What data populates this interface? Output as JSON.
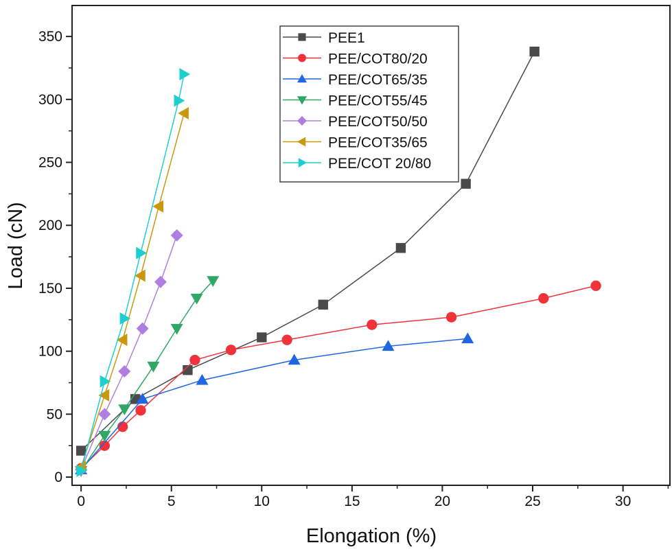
{
  "chart_data": {
    "type": "line",
    "title": "",
    "xlabel": "Elongation (%)",
    "ylabel": "Load (cN)",
    "xlim": [
      -0.5,
      32.6
    ],
    "ylim": [
      -6.5,
      374.6
    ],
    "xticks": [
      0,
      5,
      10,
      15,
      20,
      25,
      30
    ],
    "yticks": [
      0,
      50,
      100,
      150,
      200,
      250,
      300,
      350
    ],
    "grid": false,
    "legend_position": "top-center",
    "series": [
      {
        "name": "PEE1",
        "color": "#4a4a4a",
        "marker": "square",
        "x": [
          0,
          3.0,
          5.9,
          10.0,
          13.4,
          17.7,
          21.3,
          25.1
        ],
        "y": [
          21,
          62,
          85,
          111,
          137,
          182,
          233,
          338
        ]
      },
      {
        "name": "PEE/COT80/20",
        "color": "#f0323b",
        "marker": "circle",
        "x": [
          0,
          1.3,
          2.3,
          3.3,
          6.3,
          8.3,
          11.4,
          16.1,
          20.5,
          25.6,
          28.5
        ],
        "y": [
          7,
          25,
          40,
          53,
          93,
          101,
          109,
          121,
          127,
          142,
          152
        ]
      },
      {
        "name": "PEE/COT65/35",
        "color": "#1f66e0",
        "marker": "triangle-up",
        "x": [
          0,
          3.4,
          6.7,
          11.8,
          17.0,
          21.4
        ],
        "y": [
          6,
          62,
          77,
          93,
          104,
          110
        ]
      },
      {
        "name": "PEE/COT55/45",
        "color": "#2fa866",
        "marker": "triangle-down",
        "x": [
          0,
          1.3,
          2.4,
          4.0,
          5.3,
          6.4,
          7.3
        ],
        "y": [
          5,
          33,
          54,
          88,
          118,
          142,
          156
        ]
      },
      {
        "name": "PEE/COT50/50",
        "color": "#b07ee0",
        "marker": "diamond",
        "x": [
          0,
          1.3,
          2.4,
          3.4,
          4.4,
          5.3
        ],
        "y": [
          6,
          50,
          84,
          118,
          155,
          192
        ]
      },
      {
        "name": "PEE/COT35/65",
        "color": "#c9980e",
        "marker": "triangle-left",
        "x": [
          0,
          1.3,
          2.3,
          3.3,
          4.3,
          5.7
        ],
        "y": [
          8,
          65,
          109,
          160,
          215,
          289
        ]
      },
      {
        "name": "PEE/COT 20/80",
        "color": "#1fcfd0",
        "marker": "triangle-right",
        "x": [
          0,
          1.3,
          2.4,
          3.3,
          5.4,
          5.7
        ],
        "y": [
          5,
          76,
          126,
          178,
          299,
          320
        ]
      }
    ]
  }
}
